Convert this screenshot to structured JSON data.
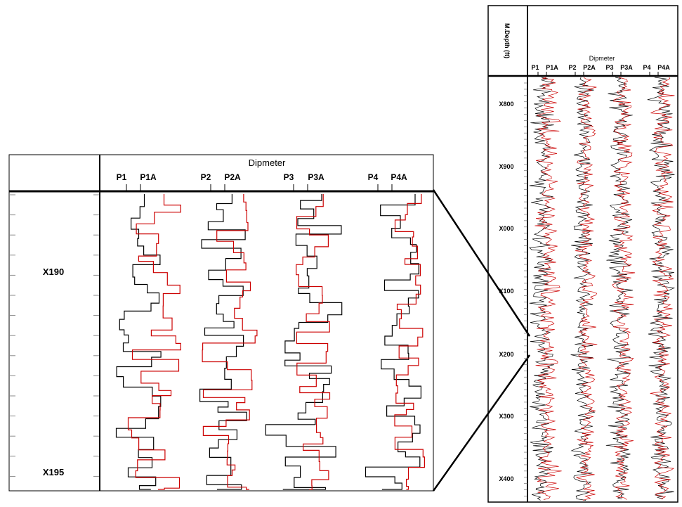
{
  "chart_data": [
    {
      "type": "line",
      "id": "zoom-panel",
      "track_title": "Dipmeter",
      "curve_labels": [
        "P1",
        "P1A",
        "P2",
        "P2A",
        "P3",
        "P3A",
        "P4",
        "P4A"
      ],
      "depth_labels": [
        "X190",
        "X195"
      ],
      "series": [
        {
          "name": "P1",
          "color": "#000000"
        },
        {
          "name": "P1A",
          "color": "#cc0000"
        },
        {
          "name": "P2",
          "color": "#000000"
        },
        {
          "name": "P2A",
          "color": "#cc0000"
        },
        {
          "name": "P3",
          "color": "#000000"
        },
        {
          "name": "P3A",
          "color": "#cc0000"
        },
        {
          "name": "P4",
          "color": "#000000"
        },
        {
          "name": "P4A",
          "color": "#cc0000"
        }
      ]
    },
    {
      "type": "line",
      "id": "full-log",
      "depth_header": "M.Depth (ft)",
      "track_title": "Dipmeter",
      "curve_labels": [
        "P1",
        "P1A",
        "P2",
        "P2A",
        "P3",
        "P3A",
        "P4",
        "P4A"
      ],
      "depth_labels": [
        "X800",
        "X900",
        "X000",
        "X100",
        "X200",
        "X300",
        "X400"
      ],
      "series": [
        {
          "name": "P1",
          "color": "#000000"
        },
        {
          "name": "P1A",
          "color": "#cc0000"
        },
        {
          "name": "P2",
          "color": "#000000"
        },
        {
          "name": "P2A",
          "color": "#cc0000"
        },
        {
          "name": "P3",
          "color": "#000000"
        },
        {
          "name": "P3A",
          "color": "#cc0000"
        },
        {
          "name": "P4",
          "color": "#000000"
        },
        {
          "name": "P4A",
          "color": "#cc0000"
        }
      ]
    }
  ],
  "colors": {
    "black_curve": "#000000",
    "red_curve": "#cc0000",
    "frame": "#000000",
    "tick": "#888888"
  }
}
